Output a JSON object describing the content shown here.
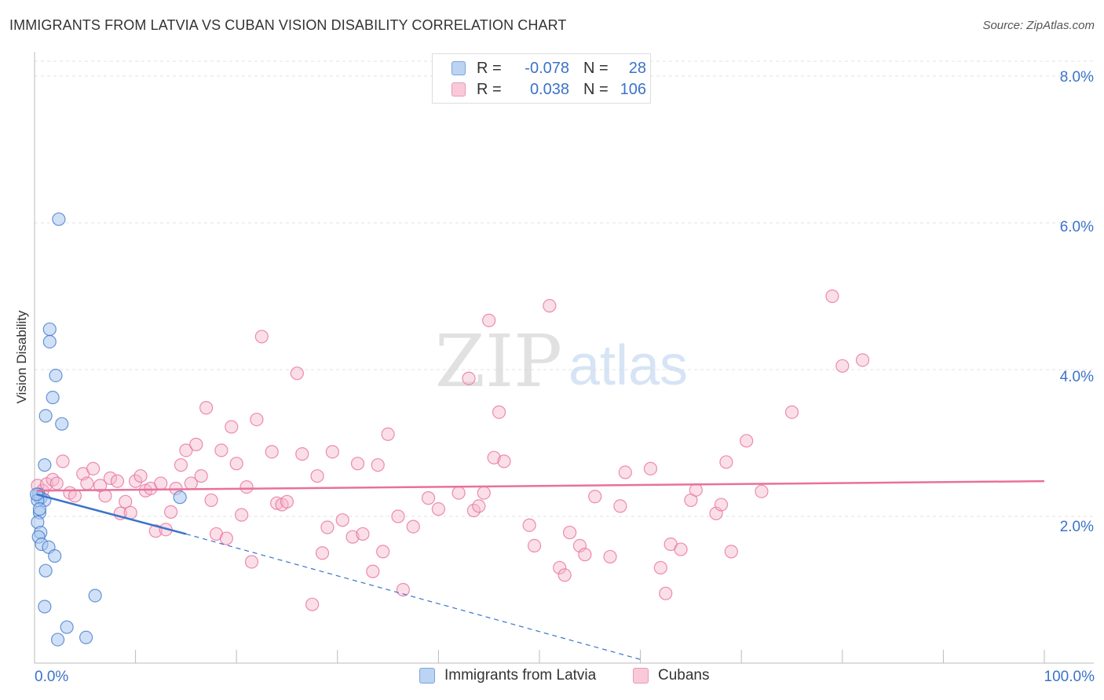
{
  "title": "IMMIGRANTS FROM LATVIA VS CUBAN VISION DISABILITY CORRELATION CHART",
  "source": "Source: ZipAtlas.com",
  "watermark": {
    "zip": "ZIP",
    "atlas": "atlas"
  },
  "colors": {
    "blue": "#3b73c8",
    "blue_fill": "#a9c8f0",
    "pink": "#e8719c",
    "pink_fill": "#f4b8cc",
    "grid": "#dddddd",
    "tick_label": "#3b73c8"
  },
  "legend_top": {
    "rows": [
      {
        "r_label": "R =",
        "r_value": "-0.078",
        "n_label": "N =",
        "n_value": "28",
        "series": "latvia"
      },
      {
        "r_label": "R =",
        "r_value": "0.038",
        "n_label": "N =",
        "n_value": "106",
        "series": "cubans"
      }
    ]
  },
  "legend_bottom": [
    "Immigrants from Latvia",
    "Cubans"
  ],
  "chart_data": {
    "type": "scatter",
    "title": "IMMIGRANTS FROM LATVIA VS CUBAN VISION DISABILITY CORRELATION CHART",
    "xlabel": "",
    "ylabel": "Vision Disability",
    "xlim": [
      0,
      100
    ],
    "ylim": [
      0,
      8.0
    ],
    "x_tick_labels": [
      "0.0%",
      "100.0%"
    ],
    "y_ticks": [
      2.0,
      4.0,
      6.0,
      8.0
    ],
    "y_tick_labels": [
      "2.0%",
      "4.0%",
      "6.0%",
      "8.0%"
    ],
    "grid": true,
    "series": [
      {
        "name": "Immigrants from Latvia",
        "color": "#3b73c8",
        "trend": {
          "x0": 0.2,
          "y0": 2.3,
          "x1": 15.0,
          "y1": 1.76,
          "dash_to_x": 60.0,
          "dash_to_y": 0.05
        },
        "points": [
          [
            2.4,
            6.05
          ],
          [
            1.5,
            4.55
          ],
          [
            1.5,
            4.38
          ],
          [
            2.1,
            3.92
          ],
          [
            1.8,
            3.62
          ],
          [
            1.1,
            3.37
          ],
          [
            2.7,
            3.26
          ],
          [
            1.0,
            2.7
          ],
          [
            0.4,
            2.3
          ],
          [
            0.6,
            2.25
          ],
          [
            1.0,
            2.22
          ],
          [
            0.3,
            2.22
          ],
          [
            0.5,
            2.05
          ],
          [
            0.3,
            1.92
          ],
          [
            0.6,
            1.78
          ],
          [
            0.4,
            1.72
          ],
          [
            0.7,
            1.62
          ],
          [
            1.4,
            1.58
          ],
          [
            2.0,
            1.46
          ],
          [
            1.1,
            1.26
          ],
          [
            14.4,
            2.26
          ],
          [
            6.0,
            0.92
          ],
          [
            1.0,
            0.77
          ],
          [
            3.2,
            0.49
          ],
          [
            2.3,
            0.32
          ],
          [
            5.1,
            0.35
          ],
          [
            0.2,
            2.3
          ],
          [
            0.5,
            2.1
          ]
        ]
      },
      {
        "name": "Cubans",
        "color": "#e8719c",
        "trend": {
          "x0": 0.2,
          "y0": 2.35,
          "x1": 100.0,
          "y1": 2.48
        },
        "points": [
          [
            0.3,
            2.42
          ],
          [
            0.8,
            2.35
          ],
          [
            1.2,
            2.44
          ],
          [
            1.8,
            2.5
          ],
          [
            2.2,
            2.45
          ],
          [
            2.8,
            2.75
          ],
          [
            3.5,
            2.32
          ],
          [
            4.0,
            2.28
          ],
          [
            4.8,
            2.58
          ],
          [
            5.2,
            2.45
          ],
          [
            5.8,
            2.65
          ],
          [
            6.5,
            2.42
          ],
          [
            7.0,
            2.28
          ],
          [
            7.5,
            2.52
          ],
          [
            8.2,
            2.48
          ],
          [
            8.5,
            2.04
          ],
          [
            9.0,
            2.2
          ],
          [
            9.5,
            2.05
          ],
          [
            10.0,
            2.48
          ],
          [
            10.5,
            2.55
          ],
          [
            11.0,
            2.35
          ],
          [
            11.5,
            2.38
          ],
          [
            12.0,
            1.8
          ],
          [
            12.5,
            2.45
          ],
          [
            13.0,
            1.82
          ],
          [
            13.5,
            2.06
          ],
          [
            14.0,
            2.38
          ],
          [
            14.5,
            2.7
          ],
          [
            15.0,
            2.9
          ],
          [
            15.5,
            2.45
          ],
          [
            16.0,
            2.98
          ],
          [
            16.5,
            2.55
          ],
          [
            17.0,
            3.48
          ],
          [
            17.5,
            2.22
          ],
          [
            18.0,
            1.76
          ],
          [
            18.5,
            2.9
          ],
          [
            19.0,
            1.7
          ],
          [
            19.5,
            3.22
          ],
          [
            20.0,
            2.72
          ],
          [
            20.5,
            2.02
          ],
          [
            21.0,
            2.4
          ],
          [
            21.5,
            1.38
          ],
          [
            22.0,
            3.32
          ],
          [
            22.5,
            4.45
          ],
          [
            23.5,
            2.88
          ],
          [
            24.0,
            2.18
          ],
          [
            24.5,
            2.16
          ],
          [
            25.0,
            2.2
          ],
          [
            26.0,
            3.95
          ],
          [
            26.5,
            2.85
          ],
          [
            27.5,
            0.8
          ],
          [
            28.0,
            2.55
          ],
          [
            28.5,
            1.5
          ],
          [
            29.0,
            1.85
          ],
          [
            29.5,
            2.88
          ],
          [
            30.5,
            1.95
          ],
          [
            31.5,
            1.72
          ],
          [
            32.0,
            2.72
          ],
          [
            32.5,
            1.76
          ],
          [
            33.5,
            1.25
          ],
          [
            34.0,
            2.7
          ],
          [
            34.5,
            1.52
          ],
          [
            35.0,
            3.12
          ],
          [
            36.5,
            1.0
          ],
          [
            37.5,
            1.86
          ],
          [
            40.0,
            2.1
          ],
          [
            42.0,
            2.32
          ],
          [
            43.0,
            3.88
          ],
          [
            43.5,
            2.08
          ],
          [
            44.0,
            2.14
          ],
          [
            44.5,
            2.32
          ],
          [
            45.0,
            4.67
          ],
          [
            45.5,
            2.8
          ],
          [
            46.0,
            3.42
          ],
          [
            46.5,
            2.75
          ],
          [
            49.0,
            1.88
          ],
          [
            49.5,
            1.6
          ],
          [
            51.0,
            4.87
          ],
          [
            52.0,
            1.3
          ],
          [
            52.5,
            1.2
          ],
          [
            53.0,
            1.78
          ],
          [
            54.0,
            1.6
          ],
          [
            54.5,
            1.48
          ],
          [
            55.5,
            2.27
          ],
          [
            57.0,
            1.45
          ],
          [
            58.0,
            2.14
          ],
          [
            61.0,
            2.65
          ],
          [
            62.0,
            1.3
          ],
          [
            62.5,
            0.95
          ],
          [
            63.0,
            1.62
          ],
          [
            64.0,
            1.55
          ],
          [
            65.0,
            2.22
          ],
          [
            65.5,
            2.36
          ],
          [
            67.5,
            2.04
          ],
          [
            68.0,
            2.16
          ],
          [
            68.5,
            2.74
          ],
          [
            69.0,
            1.52
          ],
          [
            70.5,
            3.03
          ],
          [
            72.0,
            2.34
          ],
          [
            75.0,
            3.42
          ],
          [
            79.0,
            5.0
          ],
          [
            80.0,
            4.05
          ],
          [
            82.0,
            4.13
          ],
          [
            58.5,
            2.6
          ],
          [
            39.0,
            2.25
          ],
          [
            36.0,
            2.0
          ]
        ]
      }
    ]
  }
}
